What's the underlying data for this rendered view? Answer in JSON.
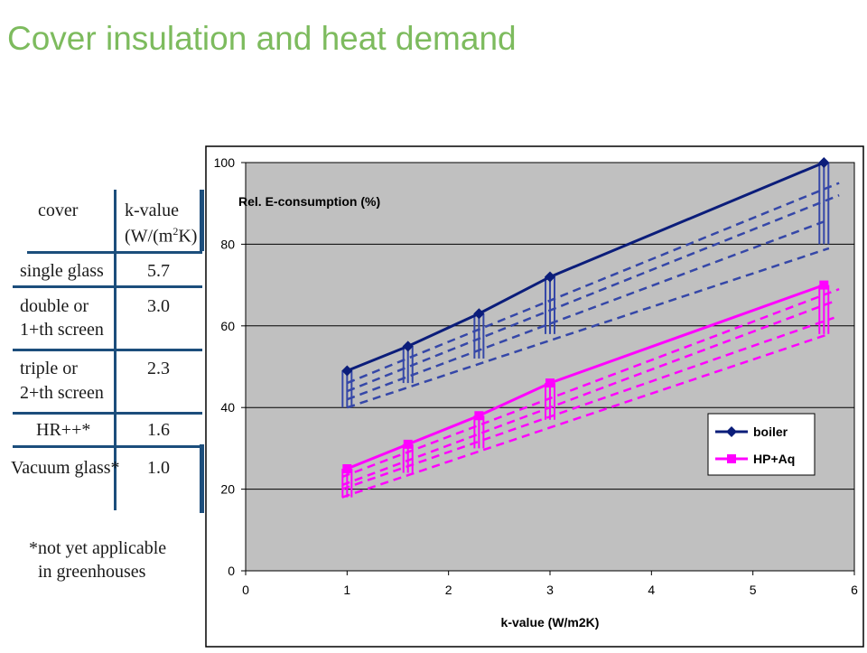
{
  "slide": {
    "title": "Cover insulation and heat demand"
  },
  "table": {
    "header": {
      "cover": "cover",
      "kvalue_line1": "k-value",
      "kvalue_line2_pre": "(W/(m",
      "kvalue_line2_sup": "2",
      "kvalue_line2_post": "K)"
    },
    "rows": [
      {
        "cover_lines": [
          "single glass"
        ],
        "k": "5.7"
      },
      {
        "cover_lines": [
          "double or",
          "1+th screen"
        ],
        "k": "3.0"
      },
      {
        "cover_lines": [
          "triple or",
          "2+th screen"
        ],
        "k": "2.3"
      },
      {
        "cover_lines": [
          "HR++*"
        ],
        "k": "1.6"
      },
      {
        "cover_lines": [
          "Vacuum glass*"
        ],
        "k": "1.0"
      }
    ],
    "footnote": [
      "*not yet applicable",
      "in greenhouses"
    ]
  },
  "colors": {
    "title": "#7dbb5e",
    "table_lines": "#1c4e7c",
    "plot_bg": "#c0c0c0",
    "boiler": "#0b1d7a",
    "boiler_dash": "#3547a8",
    "hp": "#ff00ff"
  },
  "chart_data": {
    "type": "line",
    "ylabel": "Rel. E-consumption (%)",
    "xlabel": "k-value (W/m2K)",
    "xlim": [
      0,
      6
    ],
    "ylim": [
      0,
      100
    ],
    "xticks": [
      "0",
      "1",
      "2",
      "3",
      "4",
      "5",
      "6"
    ],
    "yticks": [
      "0",
      "20",
      "40",
      "60",
      "80",
      "100"
    ],
    "grid": "horizontal",
    "legend_position": "bottom-right",
    "series": [
      {
        "name": "boiler",
        "marker": "diamond",
        "x": [
          1.0,
          1.6,
          2.3,
          3.0,
          5.7
        ],
        "y": [
          49,
          55,
          63,
          72,
          100
        ],
        "range_low": [
          40,
          46,
          52,
          58,
          80
        ],
        "range_high": [
          49,
          55,
          63,
          72,
          100
        ],
        "dashed_lines": [
          {
            "x": [
              1.0,
              5.85
            ],
            "y": [
              46,
              95
            ]
          },
          {
            "x": [
              1.0,
              5.85
            ],
            "y": [
              44,
              92
            ]
          },
          {
            "x": [
              1.0,
              5.75
            ],
            "y": [
              42,
              86
            ]
          },
          {
            "x": [
              1.0,
              5.75
            ],
            "y": [
              40,
              79
            ]
          }
        ]
      },
      {
        "name": "HP+Aq",
        "marker": "square",
        "x": [
          1.0,
          1.6,
          2.3,
          3.0,
          5.7
        ],
        "y": [
          25,
          31,
          38,
          46,
          70
        ],
        "range_low": [
          18,
          24,
          30,
          37,
          58
        ],
        "range_high": [
          25,
          31,
          38,
          46,
          70
        ],
        "dashed_lines": [
          {
            "x": [
              0.95,
              5.85
            ],
            "y": [
              23,
              69
            ]
          },
          {
            "x": [
              0.95,
              5.8
            ],
            "y": [
              21,
              66
            ]
          },
          {
            "x": [
              0.95,
              5.8
            ],
            "y": [
              20,
              62
            ]
          },
          {
            "x": [
              0.95,
              5.75
            ],
            "y": [
              18,
              58
            ]
          }
        ]
      }
    ]
  }
}
